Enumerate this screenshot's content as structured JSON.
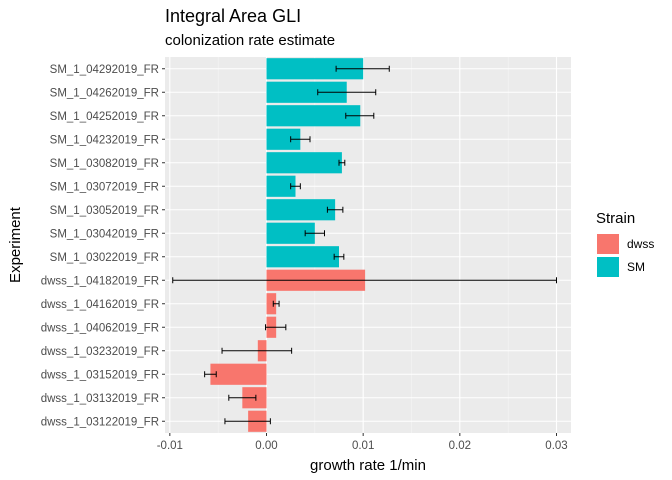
{
  "chart_data": {
    "type": "bar",
    "orientation": "horizontal",
    "title": "Integral Area GLI",
    "subtitle": "colonization rate estimate",
    "xlabel": "growth rate 1/min",
    "ylabel": "Experiment",
    "xlim": [
      -0.0105,
      0.0315
    ],
    "x_ticks": [
      -0.01,
      0.0,
      0.01,
      0.02,
      0.03
    ],
    "x_tick_labels": [
      "-0.01",
      "0.00",
      "0.01",
      "0.02",
      "0.03"
    ],
    "grid": true,
    "legend": {
      "title": "Strain",
      "placement": "right",
      "entries": [
        {
          "label": "dwss",
          "color": "#F8766D"
        },
        {
          "label": "SM",
          "color": "#00BFC4"
        }
      ]
    },
    "categories": [
      {
        "label": "SM_1_04292019_FR",
        "strain": "SM",
        "value": 0.01,
        "err_low": 0.0072,
        "err_high": 0.0127
      },
      {
        "label": "SM_1_04262019_FR",
        "strain": "SM",
        "value": 0.0083,
        "err_low": 0.0053,
        "err_high": 0.0113
      },
      {
        "label": "SM_1_04252019_FR",
        "strain": "SM",
        "value": 0.0097,
        "err_low": 0.0082,
        "err_high": 0.0111
      },
      {
        "label": "SM_1_04232019_FR",
        "strain": "SM",
        "value": 0.0035,
        "err_low": 0.0025,
        "err_high": 0.0045
      },
      {
        "label": "SM_1_03082019_FR",
        "strain": "SM",
        "value": 0.0078,
        "err_low": 0.0075,
        "err_high": 0.0081
      },
      {
        "label": "SM_1_03072019_FR",
        "strain": "SM",
        "value": 0.003,
        "err_low": 0.0025,
        "err_high": 0.0035
      },
      {
        "label": "SM_1_03052019_FR",
        "strain": "SM",
        "value": 0.0071,
        "err_low": 0.0063,
        "err_high": 0.0079
      },
      {
        "label": "SM_1_03042019_FR",
        "strain": "SM",
        "value": 0.005,
        "err_low": 0.004,
        "err_high": 0.006
      },
      {
        "label": "SM_1_03022019_FR",
        "strain": "SM",
        "value": 0.0075,
        "err_low": 0.007,
        "err_high": 0.008
      },
      {
        "label": "dwss_1_04182019_FR",
        "strain": "dwss",
        "value": 0.0102,
        "err_low": -0.0097,
        "err_high": 0.03
      },
      {
        "label": "dwss_1_04162019_FR",
        "strain": "dwss",
        "value": 0.001,
        "err_low": 0.0007,
        "err_high": 0.0013
      },
      {
        "label": "dwss_1_04062019_FR",
        "strain": "dwss",
        "value": 0.001,
        "err_low": -0.0001,
        "err_high": 0.002
      },
      {
        "label": "dwss_1_03232019_FR",
        "strain": "dwss",
        "value": -0.0009,
        "err_low": -0.0046,
        "err_high": 0.0026
      },
      {
        "label": "dwss_1_03152019_FR",
        "strain": "dwss",
        "value": -0.0058,
        "err_low": -0.0064,
        "err_high": -0.0052
      },
      {
        "label": "dwss_1_03132019_FR",
        "strain": "dwss",
        "value": -0.0025,
        "err_low": -0.0039,
        "err_high": -0.0011
      },
      {
        "label": "dwss_1_03122019_FR",
        "strain": "dwss",
        "value": -0.0019,
        "err_low": -0.0043,
        "err_high": 0.0004
      }
    ]
  },
  "colors": {
    "panel_bg": "#EBEBEB",
    "grid_major": "#FFFFFF",
    "grid_minor": "#F5F5F5",
    "dwss": "#F8766D",
    "SM": "#00BFC4"
  }
}
